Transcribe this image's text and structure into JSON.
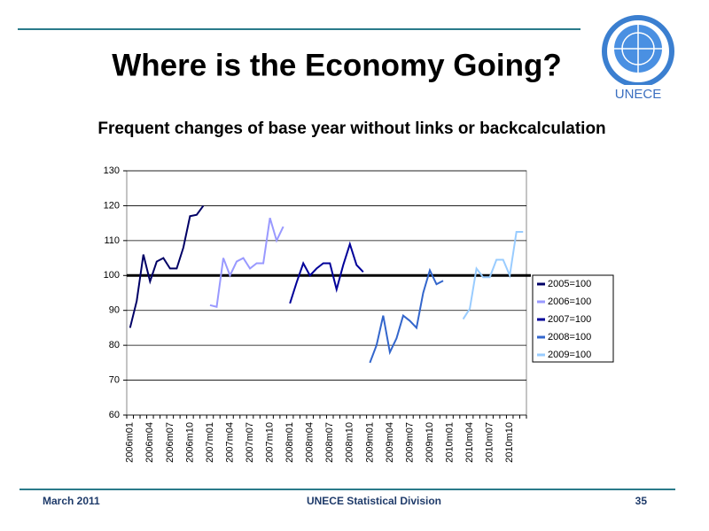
{
  "slide": {
    "title": "Where is the Economy Going?",
    "logo_text": "UNECE",
    "footer": {
      "date": "March 2011",
      "organization": "UNECE Statistical Division",
      "page": "35"
    }
  },
  "chart_data": {
    "type": "line",
    "title": "Frequent changes of base year without links or backcalculation",
    "categories": [
      "2006m01",
      null,
      null,
      "2006m04",
      null,
      null,
      "2006m07",
      null,
      null,
      "2006m10",
      null,
      null,
      "2007m01",
      null,
      null,
      "2007m04",
      null,
      null,
      "2007m07",
      null,
      null,
      "2007m10",
      null,
      null,
      "2008m01",
      null,
      null,
      "2008m04",
      null,
      null,
      "2008m07",
      null,
      null,
      "2008m10",
      null,
      null,
      "2009m01",
      null,
      null,
      "2009m04",
      null,
      null,
      "2009m07",
      null,
      null,
      "2009m10",
      null,
      null,
      "2010m01",
      null,
      null,
      "2010m04",
      null,
      null,
      "2010m07",
      null,
      null,
      "2010m10",
      null,
      null
    ],
    "series": [
      {
        "name": "2005=100",
        "color": "#000066",
        "values": [
          85,
          92.7,
          106,
          98.3,
          104,
          105,
          102,
          102,
          108,
          117,
          117.4,
          120,
          null,
          null,
          null,
          null,
          null,
          null,
          null,
          null,
          null,
          null,
          null,
          null,
          null,
          null,
          null,
          null,
          null,
          null,
          null,
          null,
          null,
          null,
          null,
          null,
          null,
          null,
          null,
          null,
          null,
          null,
          null,
          null,
          null,
          null,
          null,
          null,
          null,
          null,
          null,
          null,
          null,
          null,
          null,
          null,
          null,
          null,
          null,
          null
        ]
      },
      {
        "name": "2006=100",
        "color": "#9999ff",
        "values": [
          null,
          null,
          null,
          null,
          null,
          null,
          null,
          null,
          null,
          null,
          null,
          null,
          91.5,
          91,
          105,
          100,
          104,
          105,
          102,
          103.5,
          103.5,
          116.5,
          110,
          114,
          null,
          null,
          null,
          null,
          null,
          null,
          null,
          null,
          null,
          null,
          null,
          null,
          null,
          null,
          null,
          null,
          null,
          null,
          null,
          null,
          null,
          null,
          null,
          null,
          null,
          null,
          null,
          null,
          null,
          null,
          null,
          null,
          null,
          null,
          null,
          null
        ]
      },
      {
        "name": "2007=100",
        "color": "#000099",
        "values": [
          null,
          null,
          null,
          null,
          null,
          null,
          null,
          null,
          null,
          null,
          null,
          null,
          null,
          null,
          null,
          null,
          null,
          null,
          null,
          null,
          null,
          null,
          null,
          null,
          92,
          98,
          103.5,
          100,
          102,
          103.5,
          103.5,
          96,
          103,
          109,
          103,
          101,
          null,
          null,
          null,
          null,
          null,
          null,
          null,
          null,
          null,
          null,
          null,
          null,
          null,
          null,
          null,
          null,
          null,
          null,
          null,
          null,
          null,
          null,
          null,
          null
        ]
      },
      {
        "name": "2008=100",
        "color": "#3366cc",
        "values": [
          null,
          null,
          null,
          null,
          null,
          null,
          null,
          null,
          null,
          null,
          null,
          null,
          null,
          null,
          null,
          null,
          null,
          null,
          null,
          null,
          null,
          null,
          null,
          null,
          null,
          null,
          null,
          null,
          null,
          null,
          null,
          null,
          null,
          null,
          null,
          null,
          75,
          80,
          88.5,
          78,
          82,
          88.5,
          87,
          85,
          95,
          101.5,
          97.5,
          98.5,
          null,
          null,
          null,
          null,
          null,
          null,
          null,
          null,
          null,
          null,
          null,
          null
        ]
      },
      {
        "name": "2009=100",
        "color": "#99ccff",
        "values": [
          null,
          null,
          null,
          null,
          null,
          null,
          null,
          null,
          null,
          null,
          null,
          null,
          null,
          null,
          null,
          null,
          null,
          null,
          null,
          null,
          null,
          null,
          null,
          null,
          null,
          null,
          null,
          null,
          null,
          null,
          null,
          null,
          null,
          null,
          null,
          null,
          null,
          null,
          null,
          null,
          null,
          null,
          null,
          null,
          null,
          null,
          null,
          null,
          null,
          null,
          87.5,
          90.5,
          102,
          99.5,
          99.5,
          104.5,
          104.5,
          100,
          112.5,
          112.5
        ]
      }
    ],
    "reference_line": 100,
    "ylim": [
      60,
      130
    ],
    "yticks": [
      60,
      70,
      80,
      90,
      100,
      110,
      120,
      130
    ],
    "grid": true,
    "legend": "right"
  }
}
